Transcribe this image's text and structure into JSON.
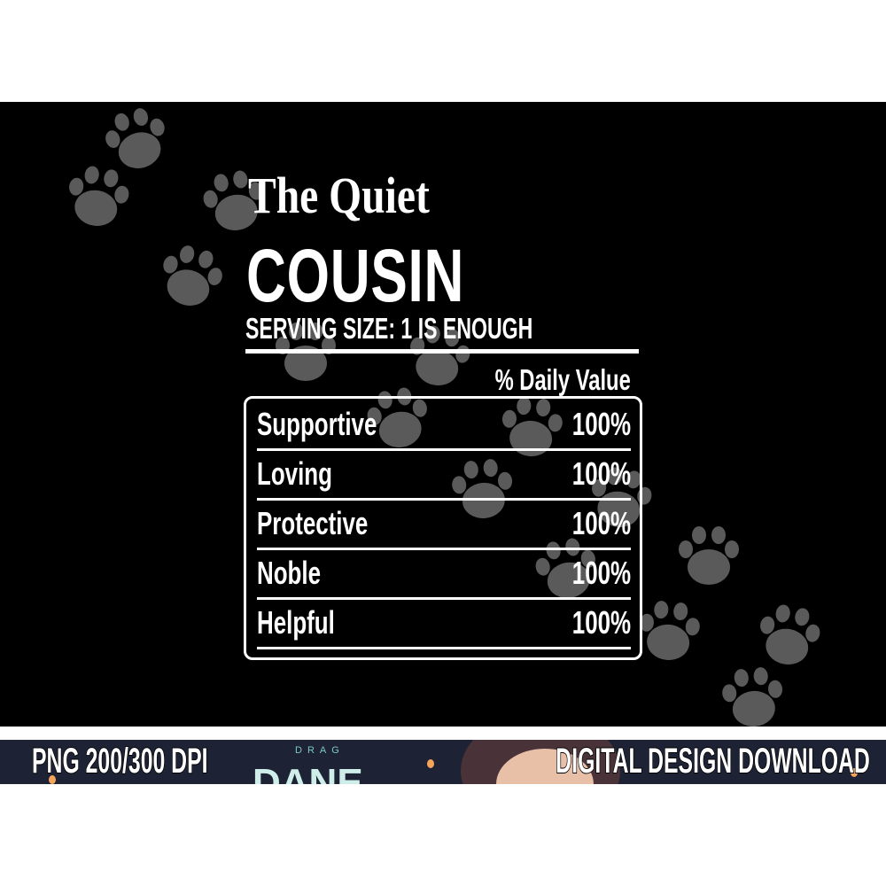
{
  "design": {
    "title_line1": "The Quiet",
    "title_line2": "COUSIN",
    "serving_size": "SERVING SIZE: 1 IS ENOUGH",
    "daily_value_header": "% Daily Value",
    "rows": [
      {
        "label": "Supportive",
        "value": "100%"
      },
      {
        "label": "Loving",
        "value": "100%"
      },
      {
        "label": "Protective",
        "value": "100%"
      },
      {
        "label": "Noble",
        "value": "100%"
      },
      {
        "label": "Helpful",
        "value": "100%"
      }
    ],
    "background_color": "#000000",
    "paw_color": "#5a5a5a",
    "paw_icon": "paw-print-icon"
  },
  "banner": {
    "left_text": "PNG 200/300 DPI",
    "right_text": "DIGITAL DESIGN DOWNLOAD",
    "background_text_small": "DRAG",
    "background_text_large": "DANE",
    "background_color": "#1e2235"
  }
}
